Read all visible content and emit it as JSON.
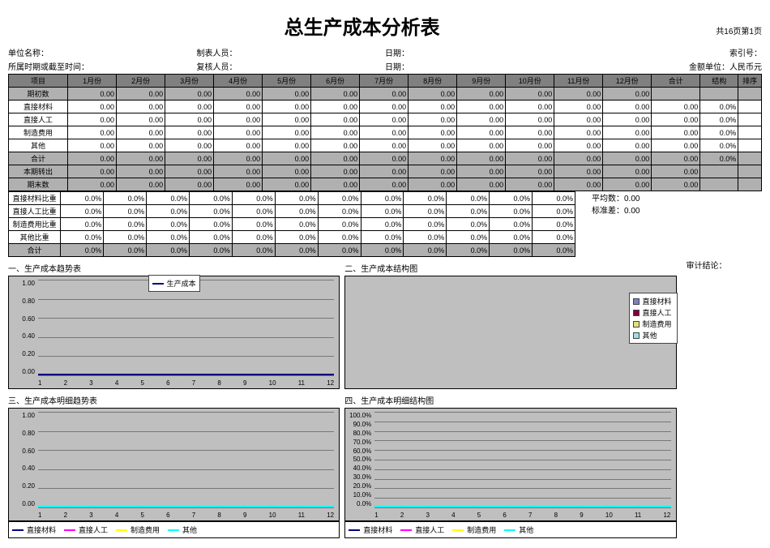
{
  "page_info": "共16页第1页",
  "title": "总生产成本分析表",
  "meta": {
    "unit_label": "单位名称：",
    "preparer_label": "制表人员：",
    "date1_label": "日期：",
    "index_label": "索引号：",
    "period_label": "所属时期或截至时间：",
    "reviewer_label": "复核人员：",
    "date2_label": "日期：",
    "currency_label": "金额单位：人民币元"
  },
  "table1": {
    "headers": [
      "项目",
      "1月份",
      "2月份",
      "3月份",
      "4月份",
      "5月份",
      "6月份",
      "7月份",
      "8月份",
      "9月份",
      "10月份",
      "11月份",
      "12月份",
      "合计",
      "结构",
      "排序"
    ],
    "rows": [
      {
        "label": "期初数",
        "shaded": true,
        "vals": [
          "0.00",
          "0.00",
          "0.00",
          "0.00",
          "0.00",
          "0.00",
          "0.00",
          "0.00",
          "0.00",
          "0.00",
          "0.00",
          "0.00",
          "",
          "",
          ""
        ]
      },
      {
        "label": "直接材料",
        "shaded": false,
        "vals": [
          "0.00",
          "0.00",
          "0.00",
          "0.00",
          "0.00",
          "0.00",
          "0.00",
          "0.00",
          "0.00",
          "0.00",
          "0.00",
          "0.00",
          "0.00",
          "0.0%",
          ""
        ]
      },
      {
        "label": "直接人工",
        "shaded": false,
        "vals": [
          "0.00",
          "0.00",
          "0.00",
          "0.00",
          "0.00",
          "0.00",
          "0.00",
          "0.00",
          "0.00",
          "0.00",
          "0.00",
          "0.00",
          "0.00",
          "0.0%",
          ""
        ]
      },
      {
        "label": "制造费用",
        "shaded": false,
        "vals": [
          "0.00",
          "0.00",
          "0.00",
          "0.00",
          "0.00",
          "0.00",
          "0.00",
          "0.00",
          "0.00",
          "0.00",
          "0.00",
          "0.00",
          "0.00",
          "0.0%",
          ""
        ]
      },
      {
        "label": "其他",
        "shaded": false,
        "vals": [
          "0.00",
          "0.00",
          "0.00",
          "0.00",
          "0.00",
          "0.00",
          "0.00",
          "0.00",
          "0.00",
          "0.00",
          "0.00",
          "0.00",
          "0.00",
          "0.0%",
          ""
        ]
      },
      {
        "label": "合计",
        "shaded": true,
        "vals": [
          "0.00",
          "0.00",
          "0.00",
          "0.00",
          "0.00",
          "0.00",
          "0.00",
          "0.00",
          "0.00",
          "0.00",
          "0.00",
          "0.00",
          "0.00",
          "0.0%",
          ""
        ]
      },
      {
        "label": "本期转出",
        "shaded": true,
        "vals": [
          "0.00",
          "0.00",
          "0.00",
          "0.00",
          "0.00",
          "0.00",
          "0.00",
          "0.00",
          "0.00",
          "0.00",
          "0.00",
          "0.00",
          "0.00",
          "",
          ""
        ]
      },
      {
        "label": "期末数",
        "shaded": true,
        "vals": [
          "0.00",
          "0.00",
          "0.00",
          "0.00",
          "0.00",
          "0.00",
          "0.00",
          "0.00",
          "0.00",
          "0.00",
          "0.00",
          "0.00",
          "0.00",
          "",
          ""
        ]
      }
    ]
  },
  "table2": {
    "rows": [
      {
        "label": "直接材料比重",
        "shaded": false,
        "vals": [
          "0.0%",
          "0.0%",
          "0.0%",
          "0.0%",
          "0.0%",
          "0.0%",
          "0.0%",
          "0.0%",
          "0.0%",
          "0.0%",
          "0.0%",
          "0.0%"
        ]
      },
      {
        "label": "直接人工比重",
        "shaded": false,
        "vals": [
          "0.0%",
          "0.0%",
          "0.0%",
          "0.0%",
          "0.0%",
          "0.0%",
          "0.0%",
          "0.0%",
          "0.0%",
          "0.0%",
          "0.0%",
          "0.0%"
        ]
      },
      {
        "label": "制造费用比重",
        "shaded": false,
        "vals": [
          "0.0%",
          "0.0%",
          "0.0%",
          "0.0%",
          "0.0%",
          "0.0%",
          "0.0%",
          "0.0%",
          "0.0%",
          "0.0%",
          "0.0%",
          "0.0%"
        ]
      },
      {
        "label": "其他比重",
        "shaded": false,
        "vals": [
          "0.0%",
          "0.0%",
          "0.0%",
          "0.0%",
          "0.0%",
          "0.0%",
          "0.0%",
          "0.0%",
          "0.0%",
          "0.0%",
          "0.0%",
          "0.0%"
        ]
      },
      {
        "label": "合计",
        "shaded": true,
        "vals": [
          "0.0%",
          "0.0%",
          "0.0%",
          "0.0%",
          "0.0%",
          "0.0%",
          "0.0%",
          "0.0%",
          "0.0%",
          "0.0%",
          "0.0%",
          "0.0%"
        ]
      }
    ]
  },
  "side_stats": {
    "avg_label": "平均数：",
    "avg_val": "0.00",
    "std_label": "标准差：",
    "std_val": "0.00"
  },
  "charts": {
    "c1": {
      "title": "一、生产成本趋势表",
      "yticks": [
        "1.00",
        "0.80",
        "0.60",
        "0.40",
        "0.20",
        "0.00"
      ],
      "xticks": [
        "1",
        "2",
        "3",
        "4",
        "5",
        "6",
        "7",
        "8",
        "9",
        "10",
        "11",
        "12"
      ],
      "legend": [
        {
          "label": "生产成本",
          "color": "#000080"
        }
      ],
      "legend_pos": "top",
      "grid_lines": 6
    },
    "c2": {
      "title": "二、生产成本结构图",
      "yticks": [],
      "xticks": [],
      "legend": [
        {
          "label": "直接材料",
          "color": "#8080c0"
        },
        {
          "label": "直接人工",
          "color": "#800040"
        },
        {
          "label": "制造费用",
          "color": "#e0e080"
        },
        {
          "label": "其他",
          "color": "#a0e0e0"
        }
      ],
      "legend_pos": "right",
      "grid_lines": 0
    },
    "c3": {
      "title": "三、生产成本明细趋势表",
      "yticks": [
        "1.00",
        "0.80",
        "0.60",
        "0.40",
        "0.20",
        "0.00"
      ],
      "xticks": [
        "1",
        "2",
        "3",
        "4",
        "5",
        "6",
        "7",
        "8",
        "9",
        "10",
        "11",
        "12"
      ],
      "legend": [
        {
          "label": "直接材料",
          "color": "#000080"
        },
        {
          "label": "直接人工",
          "color": "#ff00ff"
        },
        {
          "label": "制造费用",
          "color": "#ffff00"
        },
        {
          "label": "其他",
          "color": "#00ffff"
        }
      ],
      "legend_pos": "below",
      "grid_lines": 6
    },
    "c4": {
      "title": "四、生产成本明细结构图",
      "yticks": [
        "100.0%",
        "90.0%",
        "80.0%",
        "70.0%",
        "60.0%",
        "50.0%",
        "40.0%",
        "30.0%",
        "20.0%",
        "10.0%",
        "0.0%"
      ],
      "xticks": [
        "1",
        "2",
        "3",
        "4",
        "5",
        "6",
        "7",
        "8",
        "9",
        "10",
        "11",
        "12"
      ],
      "legend": [
        {
          "label": "直接材料",
          "color": "#000080"
        },
        {
          "label": "直接人工",
          "color": "#ff00ff"
        },
        {
          "label": "制造费用",
          "color": "#ffff00"
        },
        {
          "label": "其他",
          "color": "#00ffff"
        }
      ],
      "legend_pos": "below",
      "grid_lines": 11
    }
  },
  "audit_label": "审计结论："
}
